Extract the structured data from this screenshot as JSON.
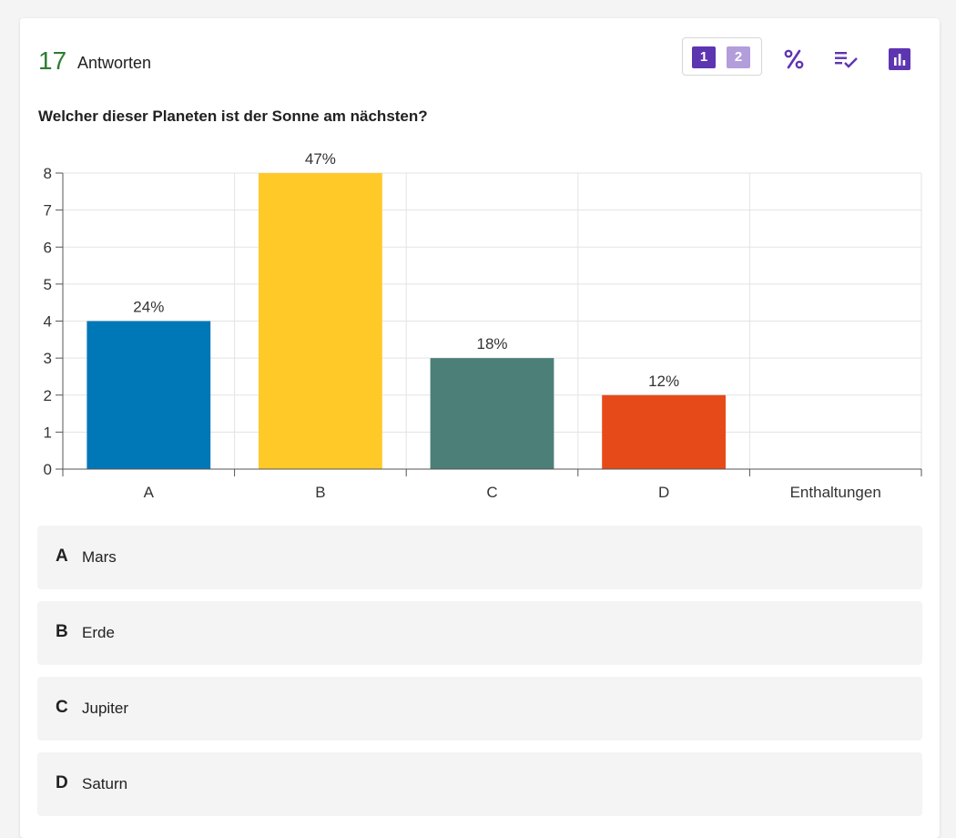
{
  "header": {
    "response_count": "17",
    "response_label": "Antworten",
    "round_buttons": [
      "1",
      "2"
    ],
    "colors": {
      "count": "#2e7d32",
      "accent": "#5e35b1",
      "accent_light": "#b39ddb"
    },
    "tools": [
      "percent-icon",
      "checklist-icon",
      "bar-chart-icon"
    ]
  },
  "question": "Welcher dieser Planeten ist der Sonne am nächsten?",
  "chart_data": {
    "type": "bar",
    "categories": [
      "A",
      "B",
      "C",
      "D",
      "Enthaltungen"
    ],
    "values": [
      4,
      8,
      3,
      2,
      0
    ],
    "data_labels": [
      "24%",
      "47%",
      "18%",
      "12%",
      ""
    ],
    "colors": [
      "#0077b6",
      "#ffc928",
      "#4c7f78",
      "#e64a19",
      "#9e9e9e"
    ],
    "ylim": [
      0,
      8
    ],
    "yticks": [
      0,
      1,
      2,
      3,
      4,
      5,
      6,
      7,
      8
    ],
    "grid": true,
    "title": "",
    "xlabel": "",
    "ylabel": ""
  },
  "answers": [
    {
      "letter": "A",
      "text": "Mars"
    },
    {
      "letter": "B",
      "text": "Erde"
    },
    {
      "letter": "C",
      "text": "Jupiter"
    },
    {
      "letter": "D",
      "text": "Saturn"
    }
  ]
}
